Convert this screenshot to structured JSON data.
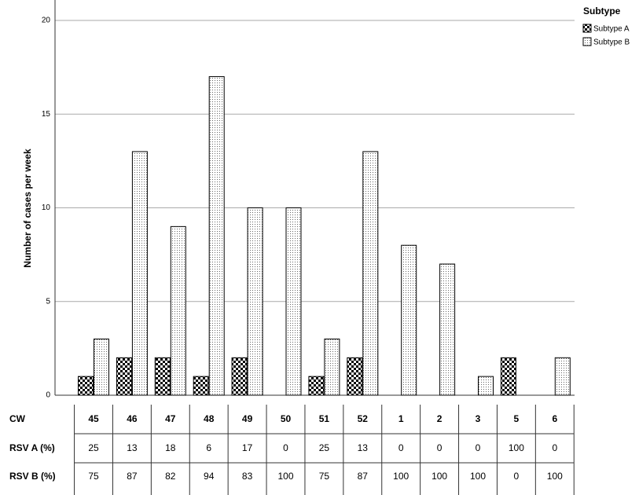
{
  "chart_data": {
    "type": "bar",
    "y_label": "Number of cases per week",
    "legend_title": "Subtype",
    "categories": [
      "45",
      "46",
      "47",
      "48",
      "49",
      "50",
      "51",
      "52",
      "1",
      "2",
      "3",
      "5",
      "6"
    ],
    "series": [
      {
        "name": "Subtype A",
        "pattern": "checker",
        "values": [
          1,
          2,
          2,
          1,
          2,
          0,
          1,
          2,
          0,
          0,
          0,
          2,
          0
        ]
      },
      {
        "name": "Subtype B",
        "pattern": "dots",
        "values": [
          3,
          13,
          9,
          17,
          10,
          10,
          3,
          13,
          8,
          7,
          1,
          0,
          2
        ]
      }
    ],
    "ylim": [
      0,
      20
    ],
    "yticks": [
      0,
      5,
      10,
      15,
      20
    ],
    "grid": true,
    "table": {
      "header": "CW",
      "rows": [
        {
          "label": "RSV A (%)",
          "values": [
            25,
            13,
            18,
            6,
            17,
            0,
            25,
            13,
            0,
            0,
            0,
            100,
            0
          ]
        },
        {
          "label": "RSV B (%)",
          "values": [
            75,
            87,
            82,
            94,
            83,
            100,
            75,
            87,
            100,
            100,
            100,
            0,
            100
          ]
        }
      ]
    }
  }
}
